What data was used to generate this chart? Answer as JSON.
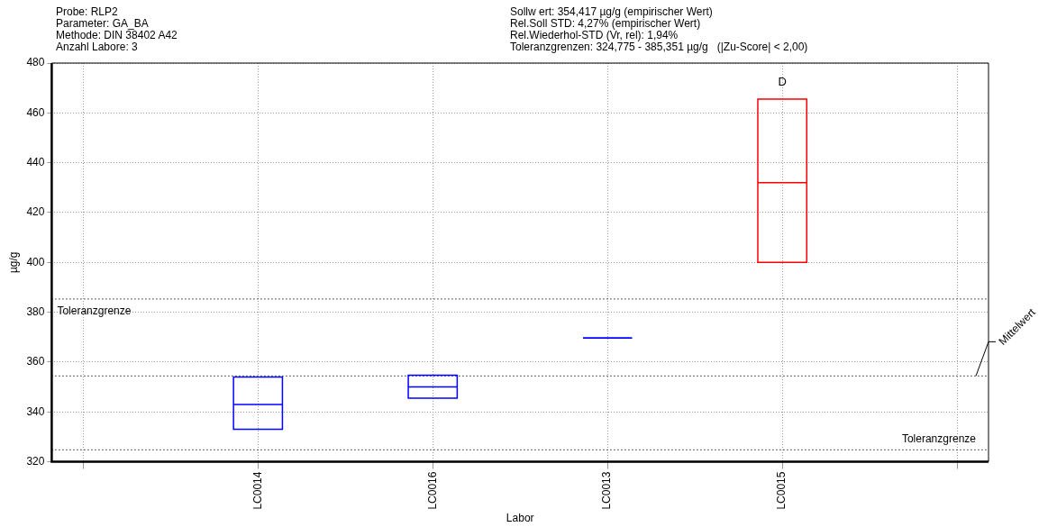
{
  "chart_data": {
    "type": "box",
    "annotations": [
      "Probe: RLP2",
      "Parameter: GA_BA",
      "Methode: DIN 38402 A42",
      "Anzahl Labore: 3",
      "Sollw ert: 354,417 µg/g (empirischer Wert)",
      "Rel.Soll STD: 4,27% (empirischer Wert)",
      "Rel.Wiederhol-STD (Vr, rel): 1,94%",
      "Toleranzgrenzen: 324,775 - 385,351 µg/g   (|Zu-Score| < 2,00)",
      {
        "text": "D",
        "x": "LC0015",
        "y": 465.5
      }
    ],
    "xlabel": "Labor",
    "ylabel": "µg/g",
    "categories": [
      null,
      "LC0014",
      "LC0016",
      "LC0013",
      "LC0015",
      null
    ],
    "boxes": [
      null,
      {
        "low": 333,
        "q1": 333,
        "median": 343,
        "q3": 354,
        "high": 354
      },
      {
        "low": 345.5,
        "q1": 345.5,
        "median": 350,
        "q3": 354.7,
        "high": 354.7
      },
      {
        "low": 369.6,
        "q1": 369.6,
        "median": 369.6,
        "q3": 369.6,
        "high": 369.6
      },
      {
        "low": 400,
        "q1": 400,
        "median": 432,
        "q3": 465.5,
        "high": 465.5
      },
      null
    ],
    "colors": [
      null,
      "#0000ff",
      "#0000ff",
      "#0000ff",
      "#ff0000",
      null
    ],
    "ylim": [
      320,
      480
    ],
    "yticks": [
      320,
      340,
      360,
      380,
      400,
      420,
      440,
      460,
      480
    ],
    "ref_lines": [
      {
        "axis": "y",
        "value": 385.351,
        "label": "Toleranzgrenze",
        "line_style": "dotted",
        "color": "#000000"
      },
      {
        "axis": "y",
        "value": 354.417,
        "label": "Mittelwert",
        "line_style": "dotted",
        "color": "#000000"
      },
      {
        "axis": "y",
        "value": 324.775,
        "label": "Toleranzgrenze",
        "line_style": "dotted",
        "color": "#000000"
      }
    ],
    "grid": true,
    "legend": false
  }
}
